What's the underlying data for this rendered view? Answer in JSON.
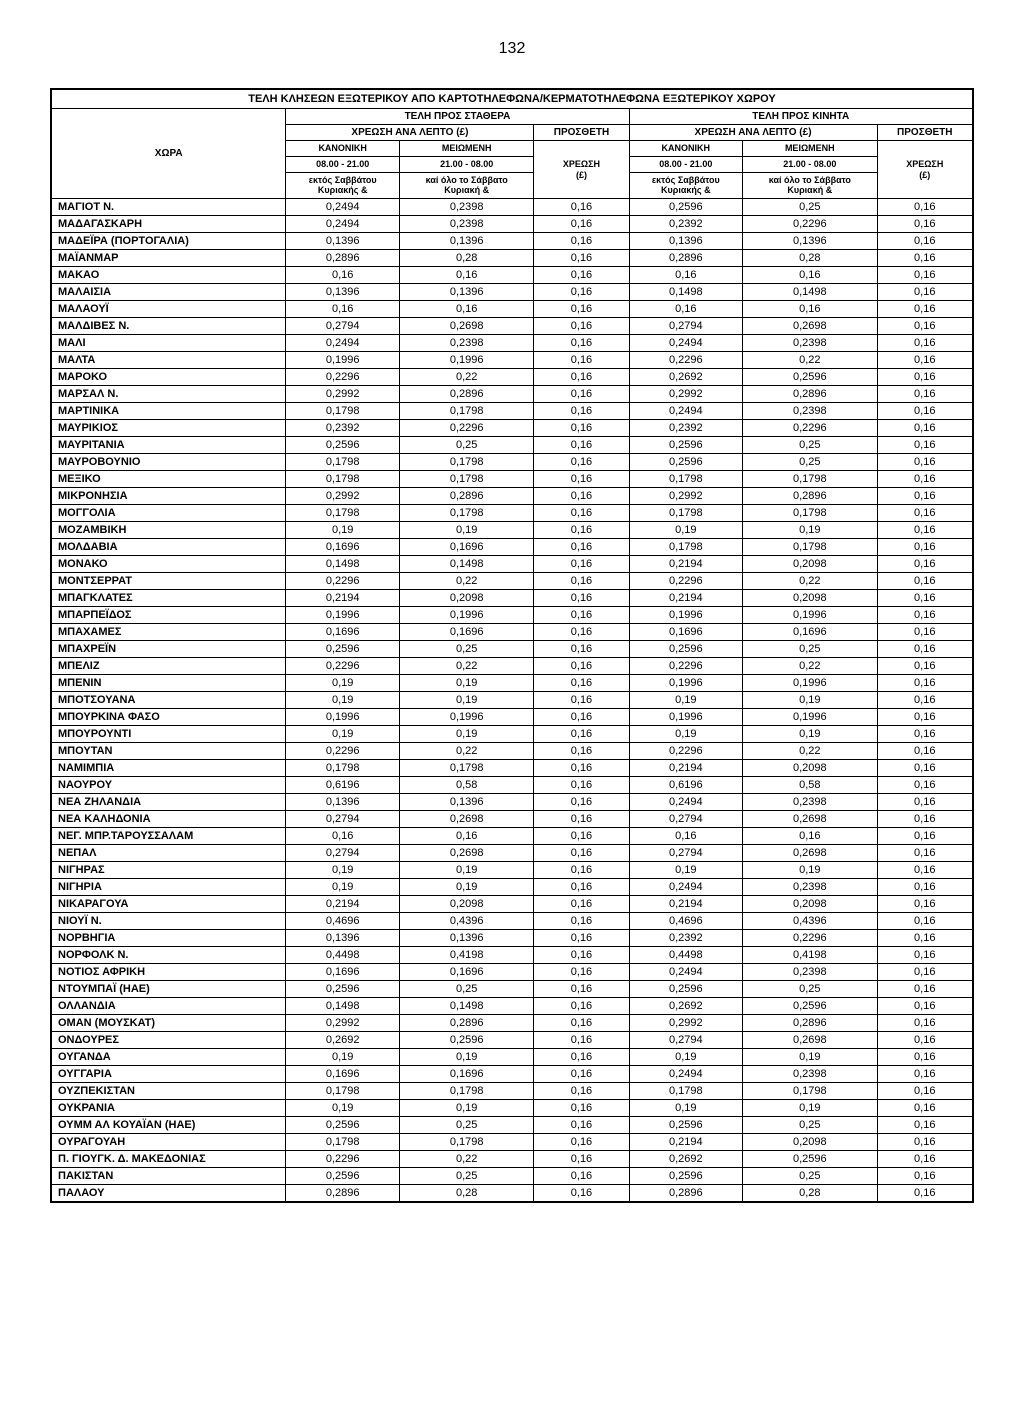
{
  "page_number": "132",
  "table": {
    "main_title": "ΤΕΛΗ ΚΛΗΣΕΩΝ ΕΞΩΤΕΡΙΚΟΥ ΑΠΟ ΚΑΡΤΟΤΗΛΕΦΩΝΑ/ΚΕΡΜΑΤΟΤΗΛΕΦΩΝΑ ΕΞΩΤΕΡΙΚΟΥ ΧΩΡΟΥ",
    "group1": "ΤΕΛΗ ΠΡΟΣ ΣΤΑΘΕΡΑ",
    "group2": "ΤΕΛΗ ΠΡΟΣ ΚΙΝΗΤΑ",
    "sub_charge": "ΧΡΕΩΣΗ ΑΝΑ ΛΕΠΤΟ (£)",
    "sub_additional": "ΠΡΟΣΘΕΤΗ",
    "country_header": "ΧΩΡΑ",
    "normal": "ΚΑΝΟΝΙΚΗ",
    "reduced": "ΜΕΙΩΜΕΝΗ",
    "charge": "ΧΡΕΩΣΗ",
    "time1": "08.00 - 21.00",
    "time2": "21.00 - 08.00",
    "currency": "(£)",
    "note1": "εκτός Σαββάτου",
    "note2": "καί όλο το Σάββατο",
    "note3": "Κυριακής &",
    "note4": "Κυριακή &",
    "rows": [
      [
        "ΜΑΓΙΟΤ Ν.",
        "0,2494",
        "0,2398",
        "0,16",
        "0,2596",
        "0,25",
        "0,16"
      ],
      [
        "ΜΑΔΑΓΑΣΚΑΡΗ",
        "0,2494",
        "0,2398",
        "0,16",
        "0,2392",
        "0,2296",
        "0,16"
      ],
      [
        "ΜΑΔΕΪΡΑ (ΠΟΡΤΟΓΑΛΙΑ)",
        "0,1396",
        "0,1396",
        "0,16",
        "0,1396",
        "0,1396",
        "0,16"
      ],
      [
        "ΜΑΪΑΝΜΑΡ",
        "0,2896",
        "0,28",
        "0,16",
        "0,2896",
        "0,28",
        "0,16"
      ],
      [
        "ΜΑΚΑΟ",
        "0,16",
        "0,16",
        "0,16",
        "0,16",
        "0,16",
        "0,16"
      ],
      [
        "ΜΑΛΑΙΣΙΑ",
        "0,1396",
        "0,1396",
        "0,16",
        "0,1498",
        "0,1498",
        "0,16"
      ],
      [
        "ΜΑΛΑΟΥΪ",
        "0,16",
        "0,16",
        "0,16",
        "0,16",
        "0,16",
        "0,16"
      ],
      [
        "ΜΑΛΔΙΒΕΣ Ν.",
        "0,2794",
        "0,2698",
        "0,16",
        "0,2794",
        "0,2698",
        "0,16"
      ],
      [
        "ΜΑΛΙ",
        "0,2494",
        "0,2398",
        "0,16",
        "0,2494",
        "0,2398",
        "0,16"
      ],
      [
        "ΜΑΛΤΑ",
        "0,1996",
        "0,1996",
        "0,16",
        "0,2296",
        "0,22",
        "0,16"
      ],
      [
        "ΜΑΡΟΚΟ",
        "0,2296",
        "0,22",
        "0,16",
        "0,2692",
        "0,2596",
        "0,16"
      ],
      [
        "ΜΑΡΣΑΛ Ν.",
        "0,2992",
        "0,2896",
        "0,16",
        "0,2992",
        "0,2896",
        "0,16"
      ],
      [
        "ΜΑΡΤΙΝΙΚΑ",
        "0,1798",
        "0,1798",
        "0,16",
        "0,2494",
        "0,2398",
        "0,16"
      ],
      [
        "ΜΑΥΡΙΚΙΟΣ",
        "0,2392",
        "0,2296",
        "0,16",
        "0,2392",
        "0,2296",
        "0,16"
      ],
      [
        "ΜΑΥΡΙΤΑΝΙΑ",
        "0,2596",
        "0,25",
        "0,16",
        "0,2596",
        "0,25",
        "0,16"
      ],
      [
        "ΜΑΥΡΟΒΟΥΝΙΟ",
        "0,1798",
        "0,1798",
        "0,16",
        "0,2596",
        "0,25",
        "0,16"
      ],
      [
        "ΜΕΞΙΚΟ",
        "0,1798",
        "0,1798",
        "0,16",
        "0,1798",
        "0,1798",
        "0,16"
      ],
      [
        "ΜΙΚΡΟΝΗΣΙΑ",
        "0,2992",
        "0,2896",
        "0,16",
        "0,2992",
        "0,2896",
        "0,16"
      ],
      [
        "ΜΟΓΓΟΛΙΑ",
        "0,1798",
        "0,1798",
        "0,16",
        "0,1798",
        "0,1798",
        "0,16"
      ],
      [
        "ΜΟΖΑΜΒΙΚΗ",
        "0,19",
        "0,19",
        "0,16",
        "0,19",
        "0,19",
        "0,16"
      ],
      [
        "ΜΟΛΔΑΒΙΑ",
        "0,1696",
        "0,1696",
        "0,16",
        "0,1798",
        "0,1798",
        "0,16"
      ],
      [
        "ΜΟΝΑΚΟ",
        "0,1498",
        "0,1498",
        "0,16",
        "0,2194",
        "0,2098",
        "0,16"
      ],
      [
        "ΜΟΝΤΣΕΡΡΑΤ",
        "0,2296",
        "0,22",
        "0,16",
        "0,2296",
        "0,22",
        "0,16"
      ],
      [
        "ΜΠΑΓΚΛΑΤΕΣ",
        "0,2194",
        "0,2098",
        "0,16",
        "0,2194",
        "0,2098",
        "0,16"
      ],
      [
        "ΜΠΑΡΠΕΪΔΟΣ",
        "0,1996",
        "0,1996",
        "0,16",
        "0,1996",
        "0,1996",
        "0,16"
      ],
      [
        "ΜΠΑΧΑΜΕΣ",
        "0,1696",
        "0,1696",
        "0,16",
        "0,1696",
        "0,1696",
        "0,16"
      ],
      [
        "ΜΠΑΧΡΕΪΝ",
        "0,2596",
        "0,25",
        "0,16",
        "0,2596",
        "0,25",
        "0,16"
      ],
      [
        "ΜΠΕΛΙΖ",
        "0,2296",
        "0,22",
        "0,16",
        "0,2296",
        "0,22",
        "0,16"
      ],
      [
        "ΜΠΕΝΙΝ",
        "0,19",
        "0,19",
        "0,16",
        "0,1996",
        "0,1996",
        "0,16"
      ],
      [
        "ΜΠΟΤΣΟΥΑΝΑ",
        "0,19",
        "0,19",
        "0,16",
        "0,19",
        "0,19",
        "0,16"
      ],
      [
        "ΜΠΟΥΡΚΙΝΑ ΦΑΣΟ",
        "0,1996",
        "0,1996",
        "0,16",
        "0,1996",
        "0,1996",
        "0,16"
      ],
      [
        "ΜΠΟΥΡΟΥΝΤΙ",
        "0,19",
        "0,19",
        "0,16",
        "0,19",
        "0,19",
        "0,16"
      ],
      [
        "ΜΠΟΥΤΑΝ",
        "0,2296",
        "0,22",
        "0,16",
        "0,2296",
        "0,22",
        "0,16"
      ],
      [
        "ΝΑΜΙΜΠΙΑ",
        "0,1798",
        "0,1798",
        "0,16",
        "0,2194",
        "0,2098",
        "0,16"
      ],
      [
        "ΝΑΟΥΡΟΥ",
        "0,6196",
        "0,58",
        "0,16",
        "0,6196",
        "0,58",
        "0,16"
      ],
      [
        "ΝΕΑ ΖΗΛΑΝΔΙΑ",
        "0,1396",
        "0,1396",
        "0,16",
        "0,2494",
        "0,2398",
        "0,16"
      ],
      [
        "ΝΕΑ ΚΑΛΗΔΟΝΙΑ",
        "0,2794",
        "0,2698",
        "0,16",
        "0,2794",
        "0,2698",
        "0,16"
      ],
      [
        "ΝΕΓ. ΜΠΡ.ΤΑΡΟΥΣΣΑΛΑΜ",
        "0,16",
        "0,16",
        "0,16",
        "0,16",
        "0,16",
        "0,16"
      ],
      [
        "ΝΕΠΑΛ",
        "0,2794",
        "0,2698",
        "0,16",
        "0,2794",
        "0,2698",
        "0,16"
      ],
      [
        "ΝΙΓΗΡΑΣ",
        "0,19",
        "0,19",
        "0,16",
        "0,19",
        "0,19",
        "0,16"
      ],
      [
        "ΝΙΓΗΡΙΑ",
        "0,19",
        "0,19",
        "0,16",
        "0,2494",
        "0,2398",
        "0,16"
      ],
      [
        "ΝΙΚΑΡΑΓΟΥΑ",
        "0,2194",
        "0,2098",
        "0,16",
        "0,2194",
        "0,2098",
        "0,16"
      ],
      [
        "ΝΙΟΥΪ Ν.",
        "0,4696",
        "0,4396",
        "0,16",
        "0,4696",
        "0,4396",
        "0,16"
      ],
      [
        "ΝΟΡΒΗΓΙΑ",
        "0,1396",
        "0,1396",
        "0,16",
        "0,2392",
        "0,2296",
        "0,16"
      ],
      [
        "ΝΟΡΦΟΛΚ Ν.",
        "0,4498",
        "0,4198",
        "0,16",
        "0,4498",
        "0,4198",
        "0,16"
      ],
      [
        "ΝΟΤΙΟΣ ΑΦΡΙΚΗ",
        "0,1696",
        "0,1696",
        "0,16",
        "0,2494",
        "0,2398",
        "0,16"
      ],
      [
        "ΝΤΟΥΜΠΑΪ (ΗΑΕ)",
        "0,2596",
        "0,25",
        "0,16",
        "0,2596",
        "0,25",
        "0,16"
      ],
      [
        "ΟΛΛΑΝΔΙΑ",
        "0,1498",
        "0,1498",
        "0,16",
        "0,2692",
        "0,2596",
        "0,16"
      ],
      [
        "ΟΜΑΝ (ΜΟΥΣΚΑΤ)",
        "0,2992",
        "0,2896",
        "0,16",
        "0,2992",
        "0,2896",
        "0,16"
      ],
      [
        "ΟΝΔΟΥΡΕΣ",
        "0,2692",
        "0,2596",
        "0,16",
        "0,2794",
        "0,2698",
        "0,16"
      ],
      [
        "ΟΥΓΑΝΔΑ",
        "0,19",
        "0,19",
        "0,16",
        "0,19",
        "0,19",
        "0,16"
      ],
      [
        "ΟΥΓΓΑΡΙΑ",
        "0,1696",
        "0,1696",
        "0,16",
        "0,2494",
        "0,2398",
        "0,16"
      ],
      [
        "ΟΥΖΠΕΚΙΣΤΑΝ",
        "0,1798",
        "0,1798",
        "0,16",
        "0,1798",
        "0,1798",
        "0,16"
      ],
      [
        "ΟΥΚΡΑΝΙΑ",
        "0,19",
        "0,19",
        "0,16",
        "0,19",
        "0,19",
        "0,16"
      ],
      [
        "ΟΥΜΜ ΑΛ ΚΟΥΑΪΑΝ (ΗΑΕ)",
        "0,2596",
        "0,25",
        "0,16",
        "0,2596",
        "0,25",
        "0,16"
      ],
      [
        "ΟΥΡΑΓΟΥΑΗ",
        "0,1798",
        "0,1798",
        "0,16",
        "0,2194",
        "0,2098",
        "0,16"
      ],
      [
        "Π. ΓΙΟΥΓΚ. Δ. ΜΑΚΕΔΟΝΙΑΣ",
        "0,2296",
        "0,22",
        "0,16",
        "0,2692",
        "0,2596",
        "0,16"
      ],
      [
        "ΠΑΚΙΣΤΑΝ",
        "0,2596",
        "0,25",
        "0,16",
        "0,2596",
        "0,25",
        "0,16"
      ],
      [
        "ΠΑΛΑΟΥ",
        "0,2896",
        "0,28",
        "0,16",
        "0,2896",
        "0,28",
        "0,16"
      ]
    ]
  }
}
